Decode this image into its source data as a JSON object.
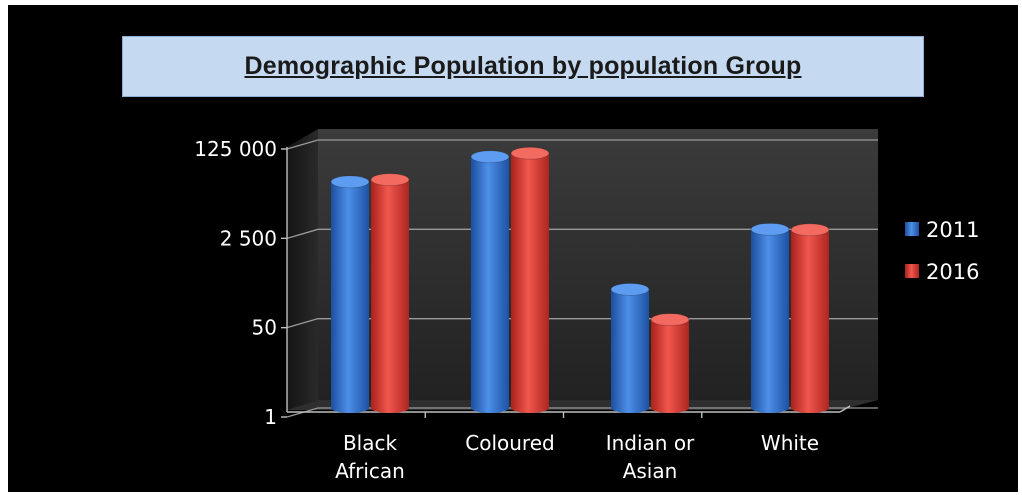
{
  "chart_data": {
    "type": "bar",
    "title": "Demographic Population  by population  Group",
    "categories": [
      [
        "Black",
        "African"
      ],
      [
        "Coloured"
      ],
      [
        "Indian or",
        "Asian"
      ],
      [
        "White"
      ]
    ],
    "series": [
      {
        "name": "2011",
        "color": "#2f6fcf",
        "values": [
          20000,
          60000,
          180,
          2500
        ]
      },
      {
        "name": "2016",
        "color": "#d93a32",
        "values": [
          22000,
          70000,
          48,
          2450
        ]
      }
    ],
    "y_ticks": [
      {
        "value": 1,
        "label": "1"
      },
      {
        "value": 50,
        "label": "50"
      },
      {
        "value": 2500,
        "label": "2 500"
      },
      {
        "value": 125000,
        "label": "125 000"
      }
    ],
    "y_scale": "log",
    "ylim": [
      1,
      125000
    ],
    "grid": true,
    "legend_position": "right",
    "style": "3d-cylinder"
  }
}
